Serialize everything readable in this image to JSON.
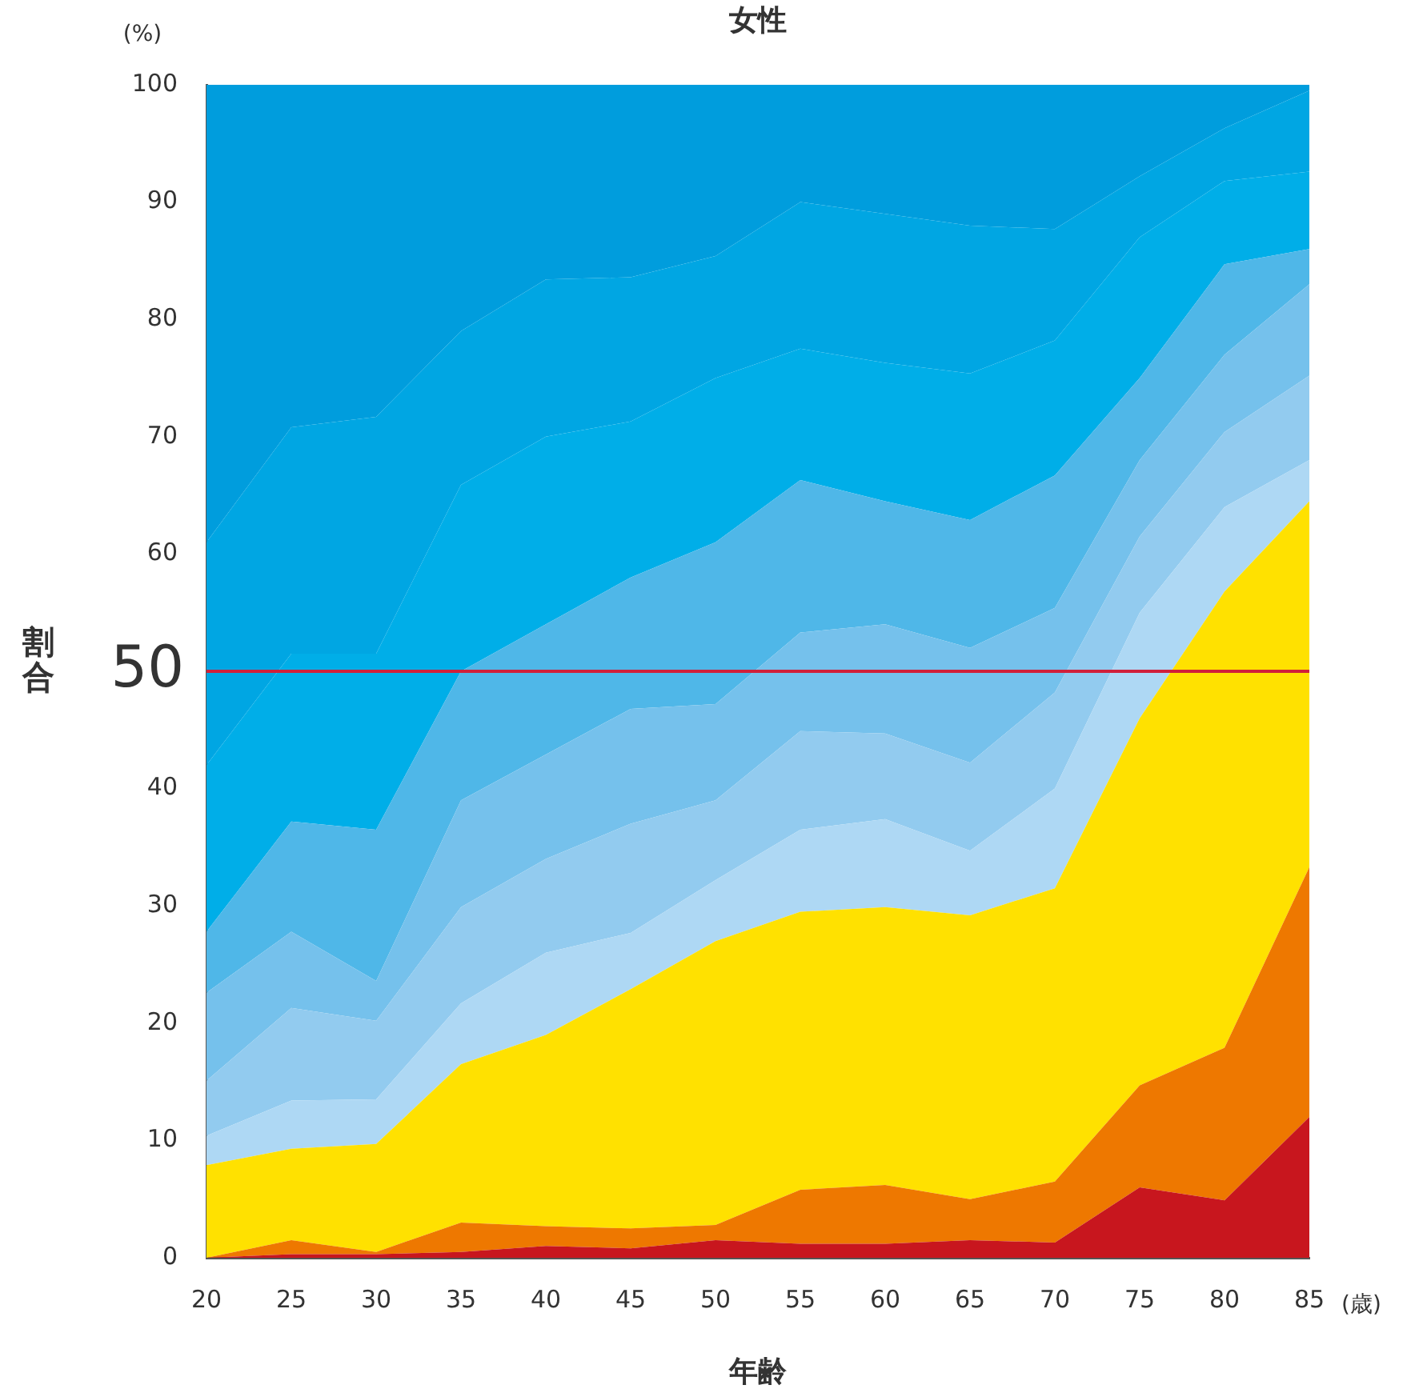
{
  "chart_data": {
    "type": "area",
    "title": "女性",
    "xlabel": "年齢",
    "ylabel": "割合",
    "stacked": true,
    "x": [
      20,
      25,
      30,
      35,
      40,
      45,
      50,
      55,
      60,
      65,
      70,
      75,
      80,
      85
    ],
    "xlim": [
      20,
      85
    ],
    "xticks": [
      20,
      25,
      30,
      35,
      40,
      45,
      50,
      55,
      60,
      65,
      70,
      75,
      80,
      85
    ],
    "ylim": [
      0,
      100
    ],
    "yticks": [
      0,
      10,
      20,
      30,
      40,
      60,
      70,
      80,
      90,
      100
    ],
    "series": [
      {
        "color": "#c8161e",
        "values": [
          0,
          0.3,
          0.3,
          0.5,
          1,
          0.8,
          1.5,
          1.2,
          1.2,
          1.5,
          1.3,
          6,
          4.9,
          12
        ]
      },
      {
        "color": "#ee7800",
        "values": [
          0,
          1.2,
          0.2,
          2.5,
          1.7,
          1.7,
          1.3,
          4.6,
          5,
          3.5,
          5.2,
          8.7,
          13,
          21.3
        ]
      },
      {
        "color": "#ffe100",
        "values": [
          7.9,
          7.8,
          9.2,
          13.5,
          16.3,
          20.4,
          24.2,
          23.7,
          23.7,
          24.2,
          25,
          31.3,
          38.9,
          31.2
        ]
      },
      {
        "color": "#aed8f4",
        "values": [
          2.5,
          4.1,
          3.8,
          5.2,
          7,
          4.8,
          5.2,
          7,
          7.5,
          5.5,
          8.5,
          9,
          7.2,
          3.5
        ]
      },
      {
        "color": "#92cbef",
        "values": [
          4.7,
          7.9,
          6.7,
          8.2,
          8,
          9.3,
          6.8,
          8.4,
          7.3,
          7.5,
          8.2,
          6.5,
          6.4,
          7.2
        ]
      },
      {
        "color": "#75c1ec",
        "values": [
          7.5,
          6.5,
          3.4,
          9.1,
          8.9,
          9.8,
          8.2,
          8.4,
          9.3,
          9.8,
          7.2,
          6.5,
          6.6,
          7.8
        ]
      },
      {
        "color": "#4fb7e8",
        "values": [
          5.2,
          9.4,
          12.9,
          11,
          11.1,
          11.2,
          13.8,
          13,
          10.5,
          10.9,
          11.3,
          7,
          7.7,
          3
        ]
      },
      {
        "color": "#00aee8",
        "values": [
          14.2,
          14.3,
          15,
          15.9,
          16,
          13.3,
          14,
          11.2,
          11.8,
          12.5,
          11.5,
          12,
          7.1,
          6.6
        ]
      },
      {
        "color": "#00a6e3",
        "values": [
          19,
          19.3,
          20.2,
          13.1,
          13.4,
          12.3,
          10.4,
          12.5,
          12.7,
          12.6,
          9.5,
          5.2,
          4.5,
          6.9
        ]
      },
      {
        "color": "#009ddd",
        "values": [
          39,
          29.2,
          28.3,
          21,
          16.6,
          16.4,
          14.6,
          10,
          11,
          12,
          12.3,
          7.8,
          3.7,
          0.5
        ]
      }
    ],
    "ref_lines": [
      {
        "axis": "y",
        "value": 50,
        "label": "50",
        "color": "#d0203a"
      }
    ],
    "annotations": [
      "(%)",
      "(歳)"
    ]
  }
}
